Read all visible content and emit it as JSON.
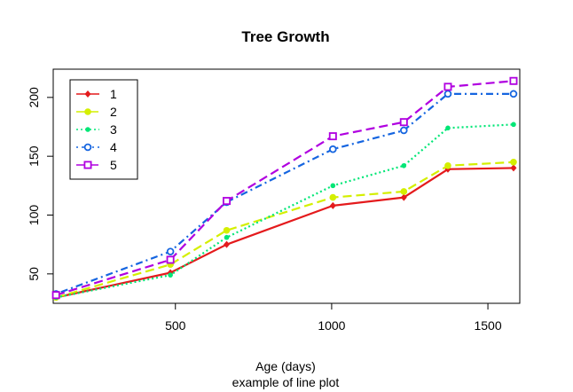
{
  "chart_data": {
    "type": "line",
    "title": "Tree Growth",
    "xlabel": "Age (days)",
    "ylabel": "",
    "subtitle": "example of line plot",
    "xlim": [
      109,
      1602
    ],
    "ylim": [
      25,
      224
    ],
    "x_ticks": [
      500,
      1000,
      1500
    ],
    "y_ticks": [
      50,
      100,
      150,
      200
    ],
    "legend_position": "top-left",
    "grid": false,
    "x": [
      118,
      484,
      664,
      1004,
      1231,
      1372,
      1582
    ],
    "series": [
      {
        "name": "1",
        "color": "#e41a1c",
        "dash": "solid",
        "marker": "diamond",
        "values": [
          30,
          51,
          75,
          108,
          115,
          139,
          140
        ]
      },
      {
        "name": "2",
        "color": "#d4ef00",
        "dash": "longdash",
        "marker": "circle",
        "values": [
          30,
          58,
          87,
          115,
          120,
          142,
          145
        ]
      },
      {
        "name": "3",
        "color": "#00e676",
        "dash": "dotted",
        "marker": "small-circle",
        "values": [
          30,
          49,
          81,
          125,
          142,
          174,
          177
        ]
      },
      {
        "name": "4",
        "color": "#1565e0",
        "dash": "dotdash",
        "marker": "open-circle",
        "values": [
          33,
          69,
          111,
          156,
          172,
          203,
          203
        ]
      },
      {
        "name": "5",
        "color": "#b000e0",
        "dash": "longdash",
        "marker": "open-square",
        "values": [
          32,
          62,
          112,
          167,
          179,
          209,
          214
        ]
      }
    ]
  }
}
